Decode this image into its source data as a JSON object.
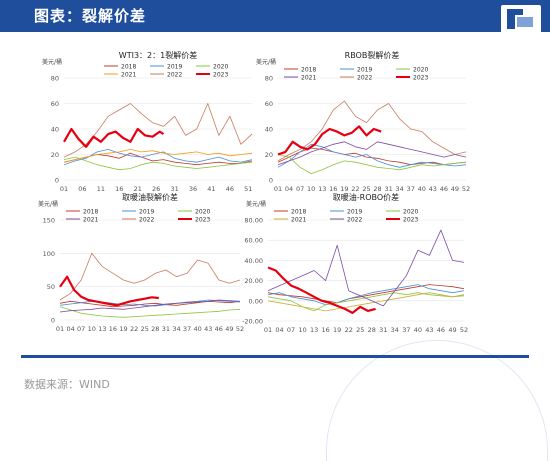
{
  "header": {
    "title": "图表：裂解价差"
  },
  "footer": {
    "source": "数据来源：WIND"
  },
  "chart_data": [
    {
      "type": "line",
      "title": "WTI3：2：1裂解价差",
      "ylabel": "美元/桶",
      "ylim": [
        0,
        80
      ],
      "yticks": [
        0,
        20,
        40,
        60,
        80
      ],
      "xticks": [
        "01",
        "06",
        "11",
        "16",
        "21",
        "26",
        "31",
        "36",
        "41",
        "46",
        "51"
      ],
      "xmax": 52,
      "legend_position": "top-right",
      "series": [
        {
          "name": "2018",
          "color": "#c0392b",
          "width": 0.8,
          "x": [
            1,
            4,
            7,
            10,
            13,
            16,
            19,
            22,
            25,
            28,
            31,
            34,
            37,
            40,
            43,
            46,
            49,
            52
          ],
          "values": [
            14,
            16,
            18,
            20,
            19,
            17,
            21,
            18,
            15,
            16,
            14,
            13,
            12,
            13,
            14,
            13,
            13,
            15
          ]
        },
        {
          "name": "2019",
          "color": "#4a90d9",
          "width": 0.8,
          "x": [
            1,
            4,
            7,
            10,
            13,
            16,
            19,
            22,
            25,
            28,
            31,
            34,
            37,
            40,
            43,
            46,
            49,
            52
          ],
          "values": [
            12,
            15,
            17,
            22,
            24,
            21,
            19,
            18,
            20,
            22,
            17,
            15,
            14,
            16,
            18,
            15,
            14,
            16
          ]
        },
        {
          "name": "2020",
          "color": "#8dc63f",
          "width": 0.8,
          "x": [
            1,
            4,
            7,
            10,
            13,
            16,
            19,
            22,
            25,
            28,
            31,
            34,
            37,
            40,
            43,
            46,
            49,
            52
          ],
          "values": [
            16,
            18,
            15,
            12,
            10,
            8,
            9,
            12,
            14,
            13,
            11,
            10,
            9,
            10,
            11,
            12,
            13,
            14
          ]
        },
        {
          "name": "2021",
          "color": "#f39c12",
          "width": 0.8,
          "x": [
            1,
            4,
            7,
            10,
            13,
            16,
            19,
            22,
            25,
            28,
            31,
            34,
            37,
            40,
            43,
            46,
            49,
            52
          ],
          "values": [
            14,
            16,
            18,
            20,
            21,
            22,
            24,
            22,
            23,
            21,
            20,
            21,
            22,
            20,
            21,
            19,
            20,
            21
          ]
        },
        {
          "name": "2022",
          "color": "#c97b63",
          "width": 0.8,
          "x": [
            1,
            4,
            7,
            10,
            13,
            16,
            19,
            22,
            25,
            28,
            31,
            34,
            37,
            40,
            43,
            46,
            49,
            52
          ],
          "values": [
            18,
            22,
            28,
            38,
            50,
            55,
            60,
            52,
            45,
            42,
            50,
            35,
            40,
            60,
            35,
            50,
            28,
            36
          ]
        },
        {
          "name": "2023",
          "color": "#e6000f",
          "width": 2.2,
          "x": [
            1,
            3,
            5,
            7,
            9,
            11,
            13,
            15,
            17,
            19,
            21,
            23,
            25,
            27,
            28
          ],
          "values": [
            30,
            40,
            32,
            26,
            34,
            30,
            36,
            38,
            33,
            30,
            40,
            35,
            34,
            38,
            36
          ]
        }
      ]
    },
    {
      "type": "line",
      "title": "RBOB裂解价差",
      "ylabel": "美元/桶",
      "ylim": [
        0,
        80
      ],
      "yticks": [
        0,
        20,
        40,
        60,
        80
      ],
      "xticks": [
        "01",
        "04",
        "07",
        "10",
        "13",
        "16",
        "19",
        "22",
        "25",
        "28",
        "31",
        "34",
        "37",
        "40",
        "43",
        "46",
        "49",
        "52"
      ],
      "xmax": 52,
      "legend_position": "top",
      "series": [
        {
          "name": "2018",
          "color": "#c0392b",
          "width": 0.8,
          "x": [
            1,
            4,
            7,
            10,
            13,
            16,
            19,
            22,
            25,
            28,
            31,
            34,
            37,
            40,
            43,
            46,
            49,
            52
          ],
          "values": [
            14,
            18,
            22,
            25,
            24,
            22,
            20,
            21,
            18,
            17,
            15,
            14,
            12,
            13,
            14,
            12,
            13,
            14
          ]
        },
        {
          "name": "2019",
          "color": "#4a90d9",
          "width": 0.8,
          "x": [
            1,
            4,
            7,
            10,
            13,
            16,
            19,
            22,
            25,
            28,
            31,
            34,
            37,
            40,
            43,
            46,
            49,
            52
          ],
          "values": [
            10,
            15,
            22,
            28,
            26,
            22,
            20,
            18,
            20,
            15,
            12,
            10,
            12,
            14,
            13,
            12,
            11,
            12
          ]
        },
        {
          "name": "2020",
          "color": "#8dc63f",
          "width": 0.8,
          "x": [
            1,
            4,
            7,
            10,
            13,
            16,
            19,
            22,
            25,
            28,
            31,
            34,
            37,
            40,
            43,
            46,
            49,
            52
          ],
          "values": [
            20,
            18,
            10,
            5,
            8,
            12,
            15,
            14,
            12,
            10,
            9,
            8,
            10,
            12,
            11,
            12,
            13,
            14
          ]
        },
        {
          "name": "2021",
          "color": "#7d4ca3",
          "width": 0.8,
          "x": [
            1,
            4,
            7,
            10,
            13,
            16,
            19,
            22,
            25,
            28,
            31,
            34,
            37,
            40,
            43,
            46,
            49,
            52
          ],
          "values": [
            12,
            15,
            18,
            22,
            25,
            28,
            30,
            26,
            24,
            30,
            28,
            26,
            24,
            22,
            20,
            18,
            20,
            18
          ]
        },
        {
          "name": "2022",
          "color": "#c97b63",
          "width": 0.8,
          "x": [
            1,
            4,
            7,
            10,
            13,
            16,
            19,
            22,
            25,
            28,
            31,
            34,
            37,
            40,
            43,
            46,
            49,
            52
          ],
          "values": [
            15,
            20,
            24,
            30,
            40,
            55,
            62,
            50,
            45,
            55,
            60,
            48,
            40,
            38,
            30,
            25,
            20,
            22
          ]
        },
        {
          "name": "2023",
          "color": "#e6000f",
          "width": 2.2,
          "x": [
            1,
            3,
            5,
            7,
            9,
            11,
            13,
            15,
            17,
            19,
            21,
            23,
            25,
            27,
            29
          ],
          "values": [
            20,
            22,
            30,
            26,
            24,
            28,
            36,
            40,
            38,
            35,
            37,
            42,
            35,
            40,
            38
          ]
        }
      ]
    },
    {
      "type": "line",
      "title": "取暖油裂解价差",
      "ylabel": "美元/桶",
      "ylim": [
        0,
        150
      ],
      "yticks": [
        0,
        50,
        100,
        150
      ],
      "xticks": [
        "01",
        "04",
        "07",
        "10",
        "13",
        "16",
        "19",
        "22",
        "25",
        "28",
        "31",
        "34",
        "37",
        "40",
        "43",
        "46",
        "49",
        "52"
      ],
      "xmax": 52,
      "legend_position": "top",
      "series": [
        {
          "name": "2018",
          "color": "#c0392b",
          "width": 0.8,
          "x": [
            1,
            4,
            7,
            10,
            13,
            16,
            19,
            22,
            25,
            28,
            31,
            34,
            37,
            40,
            43,
            46,
            49,
            52
          ],
          "values": [
            25,
            28,
            26,
            24,
            22,
            20,
            21,
            22,
            24,
            25,
            23,
            22,
            24,
            26,
            28,
            27,
            26,
            28
          ]
        },
        {
          "name": "2019",
          "color": "#4a90d9",
          "width": 0.8,
          "x": [
            1,
            4,
            7,
            10,
            13,
            16,
            19,
            22,
            25,
            28,
            31,
            34,
            37,
            40,
            43,
            46,
            49,
            52
          ],
          "values": [
            22,
            24,
            26,
            28,
            27,
            25,
            23,
            24,
            22,
            21,
            23,
            25,
            27,
            28,
            30,
            29,
            28,
            27
          ]
        },
        {
          "name": "2020",
          "color": "#8dc63f",
          "width": 0.8,
          "x": [
            1,
            4,
            7,
            10,
            13,
            16,
            19,
            22,
            25,
            28,
            31,
            34,
            37,
            40,
            43,
            46,
            49,
            52
          ],
          "values": [
            20,
            15,
            10,
            8,
            6,
            5,
            4,
            5,
            6,
            7,
            8,
            9,
            10,
            11,
            12,
            13,
            15,
            16
          ]
        },
        {
          "name": "2021",
          "color": "#7d4ca3",
          "width": 0.8,
          "x": [
            1,
            4,
            7,
            10,
            13,
            16,
            19,
            22,
            25,
            28,
            31,
            34,
            37,
            40,
            43,
            46,
            49,
            52
          ],
          "values": [
            12,
            14,
            15,
            16,
            18,
            17,
            16,
            18,
            20,
            22,
            24,
            25,
            26,
            27,
            28,
            30,
            29,
            28
          ]
        },
        {
          "name": "2022",
          "color": "#c97b63",
          "width": 0.8,
          "x": [
            1,
            4,
            7,
            10,
            13,
            16,
            19,
            22,
            25,
            28,
            31,
            34,
            37,
            40,
            43,
            46,
            49,
            52
          ],
          "values": [
            30,
            40,
            60,
            100,
            80,
            70,
            60,
            55,
            60,
            70,
            75,
            65,
            70,
            90,
            85,
            60,
            55,
            60
          ]
        },
        {
          "name": "2023",
          "color": "#e6000f",
          "width": 2.2,
          "x": [
            1,
            3,
            5,
            7,
            9,
            11,
            13,
            15,
            17,
            19,
            21,
            23,
            25,
            27,
            29
          ],
          "values": [
            50,
            65,
            45,
            35,
            30,
            28,
            26,
            24,
            22,
            25,
            28,
            30,
            32,
            34,
            33
          ]
        }
      ]
    },
    {
      "type": "line",
      "title": "取暖油-ROBO价差",
      "ylabel": "美元/桶",
      "ylim": [
        -20,
        80
      ],
      "yticks": [
        -20,
        0,
        20,
        40,
        60,
        80
      ],
      "ytick_labels": [
        "-20.00",
        "0.00",
        "20.00",
        "40.00",
        "60.00",
        "80.00"
      ],
      "xticks": [
        "01",
        "04",
        "07",
        "10",
        "13",
        "16",
        "19",
        "22",
        "25",
        "28",
        "31",
        "34",
        "37",
        "40",
        "43",
        "46",
        "49",
        "52"
      ],
      "xmax": 52,
      "legend_position": "top",
      "series": [
        {
          "name": "2018",
          "color": "#c0392b",
          "width": 0.8,
          "x": [
            1,
            4,
            7,
            10,
            13,
            16,
            19,
            22,
            25,
            28,
            31,
            34,
            37,
            40,
            43,
            46,
            49,
            52
          ],
          "values": [
            8,
            6,
            5,
            4,
            2,
            0,
            -2,
            2,
            4,
            6,
            8,
            10,
            12,
            14,
            16,
            15,
            14,
            12
          ]
        },
        {
          "name": "2019",
          "color": "#4a90d9",
          "width": 0.8,
          "x": [
            1,
            4,
            7,
            10,
            13,
            16,
            19,
            22,
            25,
            28,
            31,
            34,
            37,
            40,
            43,
            46,
            49,
            52
          ],
          "values": [
            6,
            8,
            4,
            2,
            0,
            -4,
            -2,
            2,
            5,
            8,
            10,
            12,
            14,
            16,
            12,
            10,
            8,
            10
          ]
        },
        {
          "name": "2020",
          "color": "#8dc63f",
          "width": 0.8,
          "x": [
            1,
            4,
            7,
            10,
            13,
            16,
            19,
            22,
            25,
            28,
            31,
            34,
            37,
            40,
            43,
            46,
            49,
            52
          ],
          "values": [
            4,
            2,
            0,
            -6,
            -10,
            -4,
            -2,
            0,
            2,
            4,
            6,
            8,
            6,
            8,
            6,
            5,
            4,
            6
          ]
        },
        {
          "name": "2021",
          "color": "#c9b037",
          "width": 0.8,
          "x": [
            1,
            4,
            7,
            10,
            13,
            16,
            19,
            22,
            25,
            28,
            31,
            34,
            37,
            40,
            43,
            46,
            49,
            52
          ],
          "values": [
            0,
            -2,
            -4,
            -6,
            -8,
            -10,
            -8,
            -6,
            -4,
            -2,
            0,
            2,
            4,
            6,
            8,
            6,
            4,
            5
          ]
        },
        {
          "name": "2022",
          "color": "#7d4ca3",
          "width": 0.8,
          "x": [
            1,
            4,
            7,
            10,
            13,
            16,
            19,
            22,
            25,
            28,
            31,
            34,
            37,
            40,
            43,
            46,
            49,
            52
          ],
          "values": [
            10,
            15,
            20,
            25,
            30,
            20,
            55,
            10,
            5,
            0,
            -5,
            10,
            25,
            50,
            45,
            70,
            40,
            38
          ]
        },
        {
          "name": "2023",
          "color": "#e6000f",
          "width": 2.2,
          "x": [
            1,
            3,
            5,
            7,
            9,
            11,
            13,
            15,
            17,
            19,
            21,
            23,
            25,
            27,
            29
          ],
          "values": [
            33,
            30,
            22,
            15,
            12,
            8,
            4,
            0,
            -2,
            -5,
            -8,
            -12,
            -6,
            -10,
            -8
          ]
        }
      ]
    }
  ]
}
